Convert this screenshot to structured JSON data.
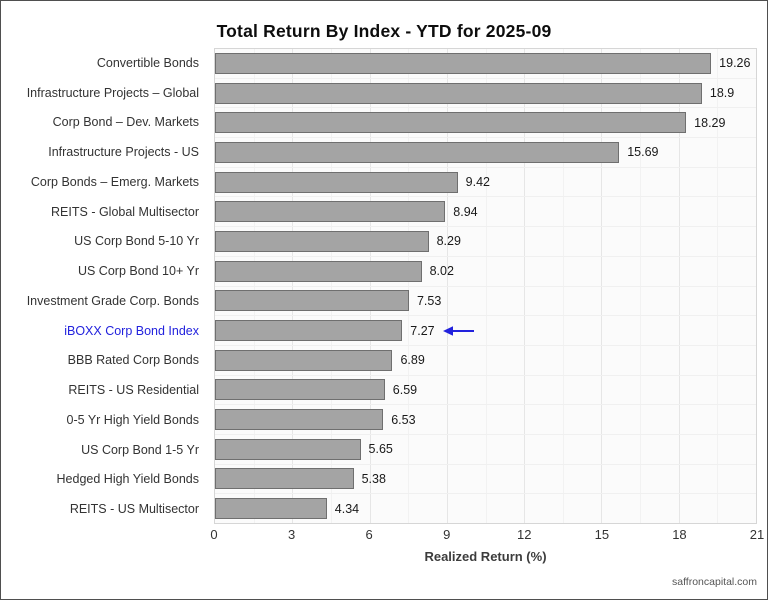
{
  "title": "Total Return By Index - YTD for 2025-09",
  "footer": "saffroncapital.com",
  "colors": {
    "bar_fill": "#a4a4a4",
    "bar_border": "#6f6f6f",
    "highlight_text": "#2222dd",
    "arrow": "#2222dd",
    "plot_background": "#fbfbfb",
    "gridline": "#e6e6e6"
  },
  "chart_data": {
    "type": "bar",
    "orientation": "horizontal",
    "title": "Total Return By Index - YTD for 2025-09",
    "xlabel": "Realized Return (%)",
    "ylabel": "",
    "xlim": [
      0,
      21
    ],
    "xticks": [
      0,
      3,
      6,
      9,
      12,
      15,
      18,
      21
    ],
    "grid": "vertical",
    "legend": "none",
    "categories": [
      "Convertible Bonds",
      "Infrastructure Projects – Global",
      "Corp Bond – Dev. Markets",
      "Infrastructure Projects - US",
      "Corp Bonds – Emerg. Markets",
      "REITS - Global Multisector",
      "US Corp Bond 5-10 Yr",
      "US Corp Bond 10+ Yr",
      "Investment Grade Corp. Bonds",
      "iBOXX Corp Bond Index",
      "BBB Rated Corp Bonds",
      "REITS - US Residential",
      "0-5 Yr High Yield Bonds",
      "US Corp Bond 1-5 Yr",
      "Hedged High Yield Bonds",
      "REITS - US Multisector"
    ],
    "values": [
      19.26,
      18.9,
      18.29,
      15.69,
      9.42,
      8.94,
      8.29,
      8.02,
      7.53,
      7.27,
      6.89,
      6.59,
      6.53,
      5.65,
      5.38,
      4.34
    ],
    "value_labels": [
      "19.26",
      "18.9",
      "18.29",
      "15.69",
      "9.42",
      "8.94",
      "8.29",
      "8.02",
      "7.53",
      "7.27",
      "6.89",
      "6.59",
      "6.53",
      "5.65",
      "5.38",
      "4.34"
    ],
    "highlight": {
      "index": 9,
      "category": "iBOXX Corp Bond Index",
      "annotation": "left-arrow"
    }
  }
}
